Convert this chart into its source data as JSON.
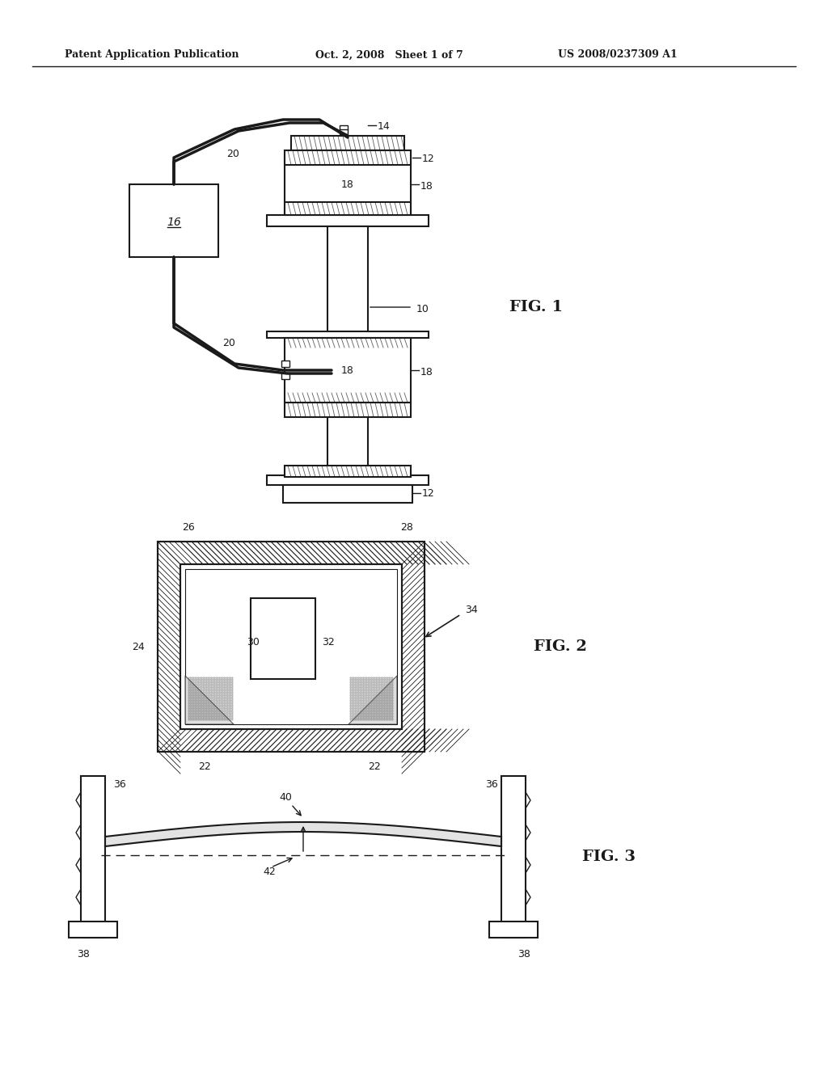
{
  "background_color": "#ffffff",
  "header_left": "Patent Application Publication",
  "header_mid": "Oct. 2, 2008   Sheet 1 of 7",
  "header_right": "US 2008/0237309 A1",
  "fig1_label": "FIG. 1",
  "fig2_label": "FIG. 2",
  "fig3_label": "FIG. 3"
}
